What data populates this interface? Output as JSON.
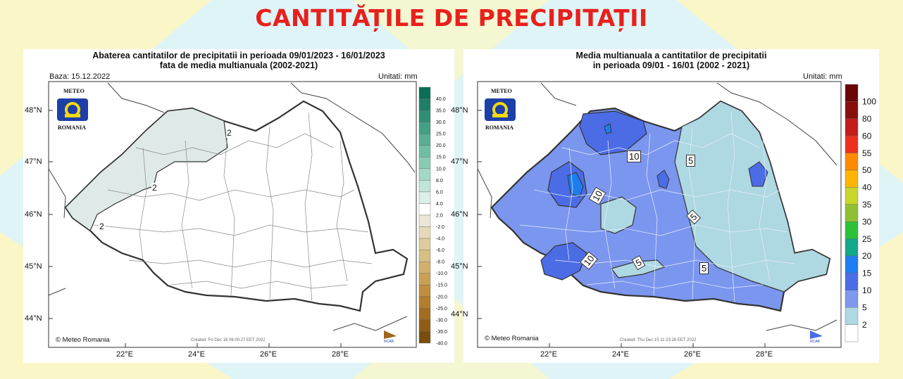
{
  "page": {
    "title": "CANTITĂȚILE DE PRECIPITAȚII"
  },
  "colors": {
    "title_red": "#e8201c",
    "background": "#dff4f6",
    "yellow_decor": "#fdf6c3"
  },
  "left_map": {
    "title_line1": "Abaterea cantitatilor de precipitatii in perioada 09/01/2023 - 16/01/2023",
    "title_line2": "fata de media multianuala (2002-2021)",
    "baza": "Baza: 15.12.2022",
    "units": "Unitati: mm",
    "logo_top": "METEO",
    "logo_bottom": "ROMANIA",
    "copyright": "© Meteo Romania",
    "created": "Created: Fri Dec 16 06:00:27 EET 2022",
    "ncar": "NCAR",
    "lat_labels": [
      "48°N",
      "47°N",
      "46°N",
      "45°N",
      "44°N"
    ],
    "lon_labels": [
      "22°E",
      "24°E",
      "26°E",
      "28°E"
    ],
    "contour_labels": [
      "2",
      "2",
      "2"
    ],
    "legend": {
      "labels": [
        "40.0",
        "35.0",
        "30.0",
        "25.0",
        "20.0",
        "15.0",
        "10.0",
        "8.0",
        "6.0",
        "4.0",
        "2.0",
        "-2.0",
        "-4.0",
        "-6.0",
        "-8.0",
        "-10.0",
        "-15.0",
        "-20.0",
        "-25.0",
        "-30.0",
        "-35.0",
        "-40.0"
      ],
      "colors": [
        "#0a6e55",
        "#1f7f66",
        "#2f8f75",
        "#43a084",
        "#58af93",
        "#6fbfa3",
        "#88ccb4",
        "#a2d9c6",
        "#bfe6d8",
        "#dcefe8",
        "#ffffff",
        "#ece6d6",
        "#e6d9b8",
        "#dfcc9c",
        "#d8bf84",
        "#d1b06c",
        "#c99f54",
        "#bf8e3f",
        "#b37e2e",
        "#a26d20",
        "#8f5c15",
        "#7a4d0e"
      ]
    }
  },
  "right_map": {
    "title_line1": "Media multianuala a cantitatilor de precipitatii",
    "title_line2": "in perioada 09/01 - 16/01 (2002 - 2021)",
    "units": "Unitati: mm",
    "logo_top": "METEO",
    "logo_bottom": "ROMANIA",
    "copyright": "© Meteo Romania",
    "created": "Created: Thu Dec 15 11:23:28 EET 2022",
    "ncar": "NCAR",
    "lat_labels": [
      "48°N",
      "47°N",
      "46°N",
      "45°N",
      "44°N"
    ],
    "lon_labels": [
      "22°E",
      "24°E",
      "26°E",
      "28°E"
    ],
    "contour_labels": [
      "10",
      "10",
      "10",
      "5",
      "5",
      "5",
      "5"
    ],
    "legend": {
      "labels": [
        "100",
        "80",
        "60",
        "55",
        "50",
        "40",
        "35",
        "30",
        "25",
        "20",
        "15",
        "10",
        "5",
        "2"
      ],
      "colors": [
        "#6b0606",
        "#8a0d0d",
        "#c41b1b",
        "#ee2e1e",
        "#ff8a00",
        "#ffb400",
        "#c6d62a",
        "#8fc034",
        "#2bc23a",
        "#12a88a",
        "#1e7ef0",
        "#4c6ce6",
        "#7e97ef",
        "#aed8e2",
        "#ffffff"
      ]
    }
  }
}
